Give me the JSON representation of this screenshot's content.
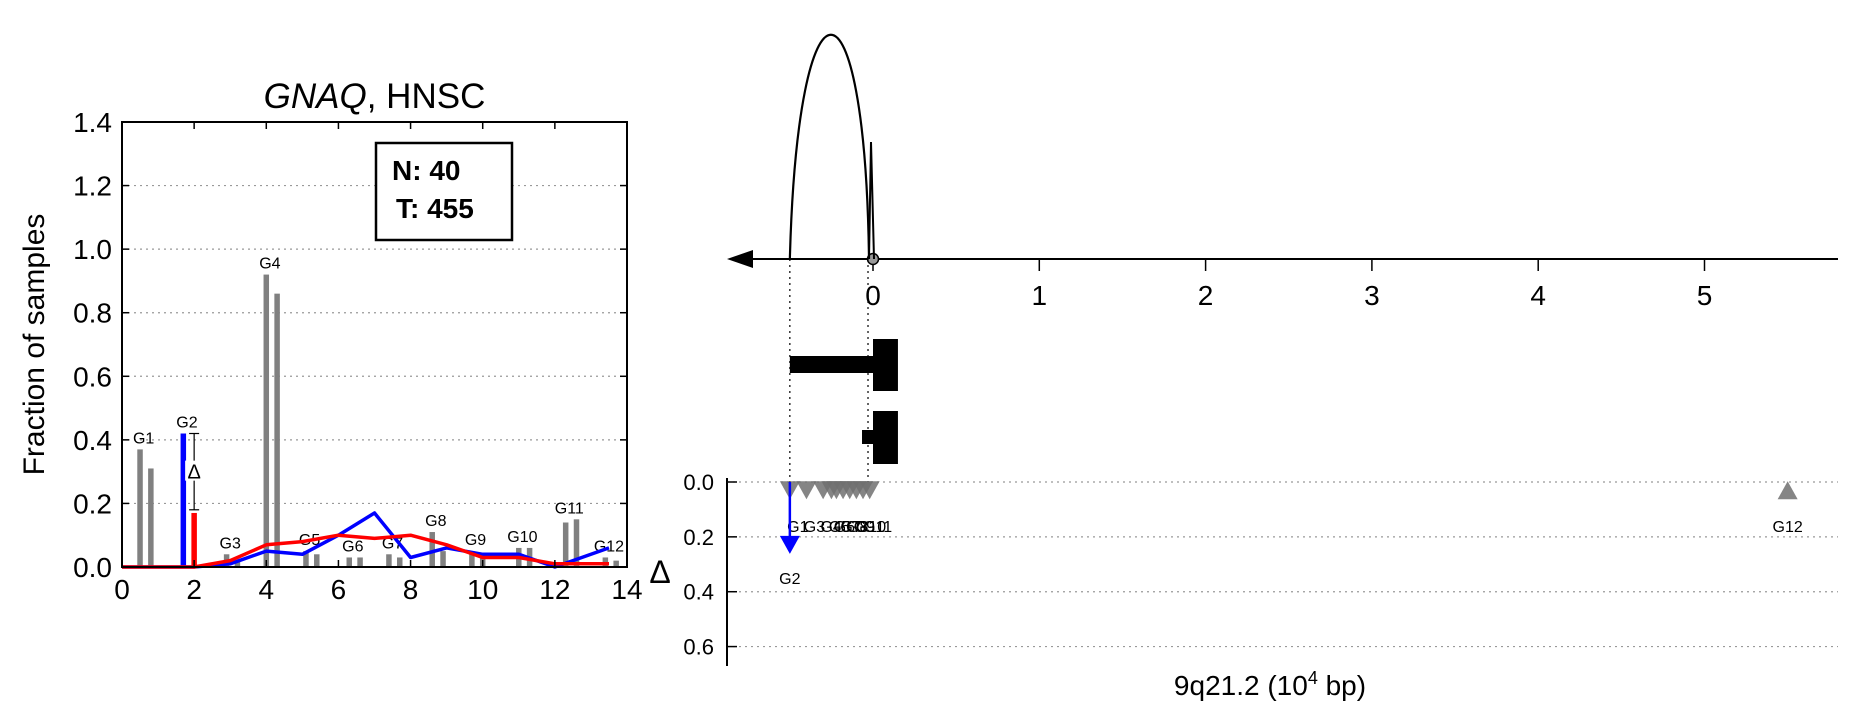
{
  "chart_data": [
    {
      "type": "bar",
      "title": "GNAQ, HNSC",
      "title_gene": "GNAQ",
      "title_suffix": ", HNSC",
      "xlabel": "",
      "ylabel": "Fraction of samples",
      "xlim": [
        0,
        14
      ],
      "ylim": [
        0,
        1.4
      ],
      "xticks": [
        "0",
        "2",
        "4",
        "6",
        "8",
        "10",
        "12",
        "14"
      ],
      "yticks": [
        "0.0",
        "0.2",
        "0.4",
        "0.6",
        "0.8",
        "1.0",
        "1.2",
        "1.4"
      ],
      "grid": "y-dotted",
      "legend_box": {
        "line1": "N: 40",
        "line2": "T: 455",
        "placement": "top-right"
      },
      "bars": [
        {
          "label": "G1",
          "x": 0.5,
          "normal": 0.37,
          "tumor": 0.31,
          "color": "#808080"
        },
        {
          "label": "G2",
          "x": 1.7,
          "normal": 0.42,
          "tumor": 0.17,
          "color_normal": "#0000ff",
          "color_tumor": "#ff0000",
          "highlight": true
        },
        {
          "label": "G3",
          "x": 2.9,
          "normal": 0.04,
          "tumor": 0.02,
          "color": "#808080"
        },
        {
          "label": "G4",
          "x": 4.0,
          "normal": 0.92,
          "tumor": 0.86,
          "color": "#808080"
        },
        {
          "label": "G5",
          "x": 5.1,
          "normal": 0.05,
          "tumor": 0.04,
          "color": "#808080"
        },
        {
          "label": "G6",
          "x": 6.3,
          "normal": 0.03,
          "tumor": 0.03,
          "color": "#808080"
        },
        {
          "label": "G7",
          "x": 7.4,
          "normal": 0.04,
          "tumor": 0.03,
          "color": "#808080"
        },
        {
          "label": "G8",
          "x": 8.6,
          "normal": 0.11,
          "tumor": 0.05,
          "color": "#808080"
        },
        {
          "label": "G9",
          "x": 9.7,
          "normal": 0.05,
          "tumor": 0.04,
          "color": "#808080"
        },
        {
          "label": "G10",
          "x": 11.0,
          "normal": 0.06,
          "tumor": 0.06,
          "color": "#808080"
        },
        {
          "label": "G11",
          "x": 12.3,
          "normal": 0.14,
          "tumor": 0.15,
          "color": "#808080"
        },
        {
          "label": "G12",
          "x": 13.4,
          "normal": 0.03,
          "tumor": 0.02,
          "color": "#808080"
        }
      ],
      "delta_marker": {
        "label": "Δ",
        "x": 2.0,
        "y_top": 0.42,
        "y_bottom": 0.18
      },
      "series": [
        {
          "name": "normal",
          "color": "#0000ff",
          "x": [
            0,
            1,
            2,
            3,
            4,
            5,
            6,
            7,
            8,
            9,
            10,
            11,
            12,
            13.5
          ],
          "y": [
            0,
            0,
            0,
            0.01,
            0.05,
            0.04,
            0.1,
            0.17,
            0.03,
            0.06,
            0.04,
            0.04,
            0.0,
            0.06
          ]
        },
        {
          "name": "tumor",
          "color": "#ff0000",
          "x": [
            0,
            1,
            2,
            3,
            4,
            5,
            6,
            7,
            8,
            9,
            10,
            11,
            12,
            13.5
          ],
          "y": [
            0,
            0,
            0,
            0.02,
            0.07,
            0.08,
            0.1,
            0.09,
            0.1,
            0.07,
            0.03,
            0.03,
            0.01,
            0.01
          ]
        }
      ]
    },
    {
      "type": "scatter",
      "xlabel_prefix": "9q21.2 (10",
      "xlabel_exp": "4",
      "xlabel_suffix": " bp)",
      "ylabel": "Δ",
      "xlim": [
        -0.9,
        5.8
      ],
      "ylim": [
        0.7,
        0
      ],
      "xticks": [
        "0",
        "1",
        "2",
        "3",
        "4",
        "5"
      ],
      "yticks": [
        "0.0",
        "0.2",
        "0.4",
        "0.6"
      ],
      "grid": "y-dotted",
      "gene_arc": {
        "x_start": -0.5,
        "x_end": 0.0,
        "peak": "large"
      },
      "transcripts": [
        {
          "start": -0.5,
          "end": 0.15
        },
        {
          "start": -0.03,
          "end": 0.15
        }
      ],
      "points": [
        {
          "label": "G1",
          "x": -0.5,
          "delta": 0.03,
          "direction": "down",
          "color": "#707070"
        },
        {
          "label": "G2",
          "x": -0.5,
          "delta": 0.24,
          "direction": "down",
          "color": "#0000ff",
          "highlight": true
        },
        {
          "label": "G3",
          "x": -0.4,
          "delta": 0.03,
          "direction": "down",
          "color": "#707070"
        },
        {
          "label": "G4",
          "x": -0.3,
          "delta": 0.03,
          "direction": "down",
          "color": "#707070"
        },
        {
          "label": "G5",
          "x": -0.25,
          "delta": 0.03,
          "direction": "down",
          "color": "#707070"
        },
        {
          "label": "G6",
          "x": -0.22,
          "delta": 0.03,
          "direction": "down",
          "color": "#707070"
        },
        {
          "label": "G7",
          "x": -0.18,
          "delta": 0.03,
          "direction": "down",
          "color": "#707070"
        },
        {
          "label": "G8",
          "x": -0.14,
          "delta": 0.03,
          "direction": "down",
          "color": "#707070"
        },
        {
          "label": "G9",
          "x": -0.1,
          "delta": 0.03,
          "direction": "down",
          "color": "#707070"
        },
        {
          "label": "G10",
          "x": -0.06,
          "delta": 0.03,
          "direction": "down",
          "color": "#707070"
        },
        {
          "label": "G11",
          "x": -0.02,
          "delta": 0.03,
          "direction": "down",
          "color": "#707070"
        },
        {
          "label": "G12",
          "x": 5.5,
          "delta": 0.03,
          "direction": "up",
          "color": "#707070"
        }
      ]
    }
  ]
}
